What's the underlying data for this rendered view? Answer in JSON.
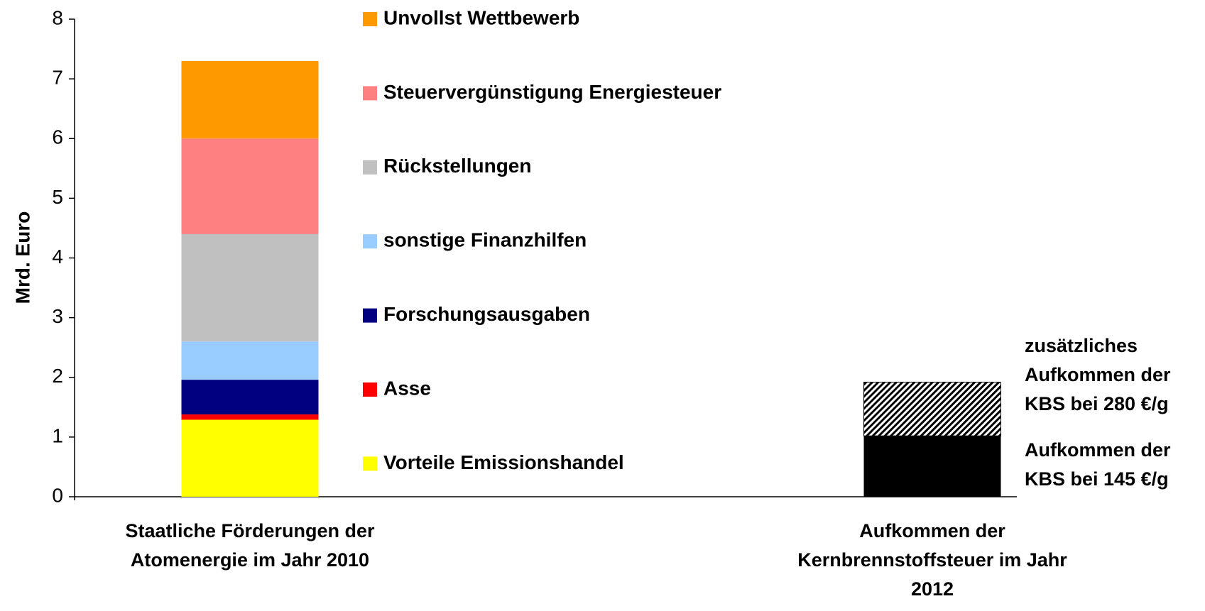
{
  "chart_data": {
    "type": "stacked_bar",
    "ylabel": "Mrd. Euro",
    "categories": [
      "Staatliche Förderungen der Atomenergie im Jahr 2010",
      "Aufkommen der Kernbrennstoffsteuer im Jahr 2012"
    ],
    "ylim": [
      0,
      8
    ],
    "yticks": [
      0,
      1,
      2,
      3,
      4,
      5,
      6,
      7,
      8
    ],
    "series": [
      {
        "name": "Vorteile Emissionshandel",
        "color": "#ffff00",
        "values": [
          1.29,
          null
        ]
      },
      {
        "name": "Asse",
        "color": "#ff0000",
        "values": [
          0.09,
          null
        ]
      },
      {
        "name": "Forschungsausgaben",
        "color": "#000080",
        "values": [
          0.58,
          null
        ]
      },
      {
        "name": "sonstige Finanzhilfen",
        "color": "#99ccff",
        "values": [
          0.64,
          null
        ]
      },
      {
        "name": "Rückstellungen",
        "color": "#c0c0c0",
        "values": [
          1.8,
          null
        ]
      },
      {
        "name": "Steuervergünstigung Energiesteuer",
        "color": "#ff8080",
        "values": [
          1.6,
          null
        ]
      },
      {
        "name": "Unvollst Wettbewerb",
        "color": "#ff9900",
        "values": [
          1.3,
          null
        ]
      },
      {
        "name": "Aufkommen der KBS bei 145 €/g",
        "color": "#000000",
        "values": [
          null,
          1.02
        ]
      },
      {
        "name": "zusätzliches Aufkommen der KBS bei 280 €/g",
        "color": "#000000",
        "pattern": "hatch",
        "values": [
          null,
          0.9
        ]
      }
    ]
  }
}
